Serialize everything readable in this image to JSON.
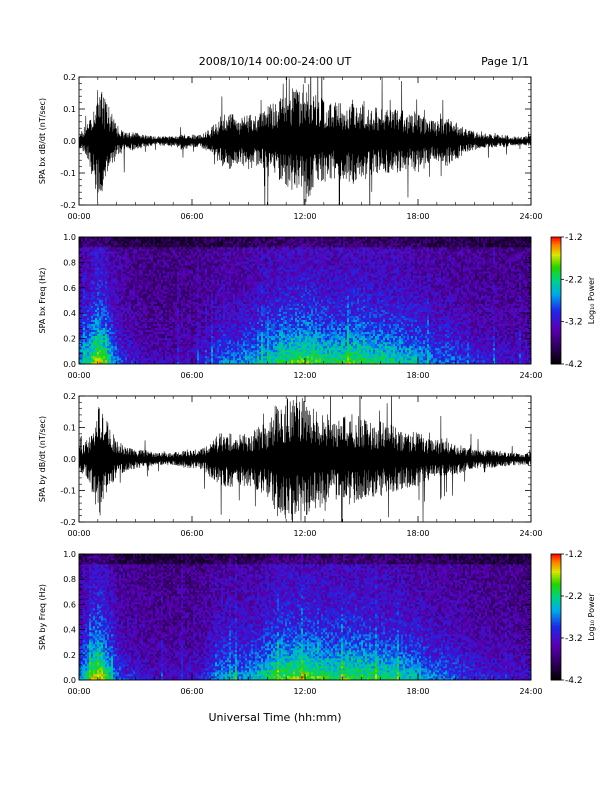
{
  "header": {
    "title": "2008/10/14  00:00-24:00 UT",
    "page": "Page 1/1"
  },
  "xaxis_label": "Universal Time (hh:mm)",
  "chart_data": [
    {
      "type": "line",
      "ylabel": "SPA bx dB/dt (nT/sec)",
      "ylim": [
        -0.2,
        0.2
      ],
      "yticks": [
        "0.2",
        "0.1",
        "0.0",
        "-0.1",
        "-0.2"
      ],
      "xlim": [
        "00:00",
        "24:00"
      ],
      "xticks": [
        "00:00",
        "06:00",
        "12:00",
        "18:00",
        "24:00"
      ],
      "envelope": {
        "hours": [
          0,
          0.5,
          1,
          1.5,
          2,
          2.5,
          3,
          3.5,
          4,
          4.5,
          5,
          5.5,
          6,
          6.5,
          7,
          7.5,
          8,
          8.5,
          9,
          9.5,
          10,
          10.5,
          11,
          11.5,
          12,
          12.5,
          13,
          13.5,
          14,
          14.5,
          15,
          15.5,
          16,
          16.5,
          17,
          17.5,
          18,
          18.5,
          19,
          19.5,
          20,
          20.5,
          21,
          21.5,
          22,
          22.5,
          23,
          23.5,
          24
        ],
        "amplitude": [
          0.02,
          0.06,
          0.2,
          0.12,
          0.05,
          0.03,
          0.03,
          0.02,
          0.015,
          0.015,
          0.015,
          0.03,
          0.02,
          0.02,
          0.04,
          0.08,
          0.09,
          0.07,
          0.09,
          0.08,
          0.11,
          0.13,
          0.14,
          0.16,
          0.2,
          0.16,
          0.13,
          0.12,
          0.13,
          0.14,
          0.13,
          0.11,
          0.1,
          0.1,
          0.1,
          0.09,
          0.1,
          0.07,
          0.06,
          0.08,
          0.06,
          0.04,
          0.03,
          0.025,
          0.02,
          0.02,
          0.015,
          0.015,
          0.02
        ]
      }
    },
    {
      "type": "heatmap",
      "ylabel": "SPA bx Freq (Hz)",
      "ylim": [
        0.0,
        1.0
      ],
      "yticks": [
        "1.0",
        "0.8",
        "0.6",
        "0.4",
        "0.2",
        "0.0"
      ],
      "xlim": [
        "00:00",
        "24:00"
      ],
      "xticks": [
        "00:00",
        "06:00",
        "12:00",
        "18:00",
        "24:00"
      ],
      "colorbar": {
        "label": "Log₁₀ Power",
        "range": [
          -4.2,
          -1.2
        ],
        "ticks": [
          "-1.2",
          "-2.2",
          "-3.2",
          "-4.2"
        ]
      },
      "activity": [
        0.5,
        0.7,
        1.0,
        0.75,
        0.45,
        0.3,
        0.25,
        0.2,
        0.18,
        0.15,
        0.15,
        0.2,
        0.2,
        0.22,
        0.3,
        0.45,
        0.5,
        0.45,
        0.55,
        0.55,
        0.65,
        0.7,
        0.75,
        0.8,
        0.85,
        0.8,
        0.75,
        0.72,
        0.75,
        0.78,
        0.8,
        0.72,
        0.7,
        0.7,
        0.65,
        0.6,
        0.6,
        0.5,
        0.45,
        0.45,
        0.4,
        0.35,
        0.3,
        0.28,
        0.25,
        0.25,
        0.22,
        0.2,
        0.2
      ]
    },
    {
      "type": "line",
      "ylabel": "SPA by dB/dt (nT/sec)",
      "ylim": [
        -0.2,
        0.2
      ],
      "yticks": [
        "0.2",
        "0.1",
        "0.0",
        "-0.1",
        "-0.2"
      ],
      "xlim": [
        "00:00",
        "24:00"
      ],
      "xticks": [
        "00:00",
        "06:00",
        "12:00",
        "18:00",
        "24:00"
      ],
      "envelope": {
        "hours": [
          0,
          0.5,
          1,
          1.5,
          2,
          2.5,
          3,
          3.5,
          4,
          4.5,
          5,
          5.5,
          6,
          6.5,
          7,
          7.5,
          8,
          8.5,
          9,
          9.5,
          10,
          10.5,
          11,
          11.5,
          12,
          12.5,
          13,
          13.5,
          14,
          14.5,
          15,
          15.5,
          16,
          16.5,
          17,
          17.5,
          18,
          18.5,
          19,
          19.5,
          20,
          20.5,
          21,
          21.5,
          22,
          22.5,
          23,
          23.5,
          24
        ],
        "amplitude": [
          0.04,
          0.07,
          0.2,
          0.12,
          0.06,
          0.04,
          0.03,
          0.03,
          0.02,
          0.02,
          0.02,
          0.03,
          0.03,
          0.03,
          0.06,
          0.09,
          0.09,
          0.08,
          0.09,
          0.1,
          0.12,
          0.18,
          0.2,
          0.2,
          0.2,
          0.16,
          0.15,
          0.13,
          0.14,
          0.15,
          0.13,
          0.12,
          0.12,
          0.11,
          0.1,
          0.09,
          0.09,
          0.07,
          0.06,
          0.07,
          0.05,
          0.04,
          0.03,
          0.03,
          0.03,
          0.025,
          0.02,
          0.02,
          0.02
        ]
      }
    },
    {
      "type": "heatmap",
      "ylabel": "SPA by Freq (Hz)",
      "ylim": [
        0.0,
        1.0
      ],
      "yticks": [
        "1.0",
        "0.8",
        "0.6",
        "0.4",
        "0.2",
        "0.0"
      ],
      "xlim": [
        "00:00",
        "24:00"
      ],
      "xticks": [
        "00:00",
        "06:00",
        "12:00",
        "18:00",
        "24:00"
      ],
      "colorbar": {
        "label": "Log₁₀ Power",
        "range": [
          -4.2,
          -1.2
        ],
        "ticks": [
          "-1.2",
          "-2.2",
          "-3.2",
          "-4.2"
        ]
      },
      "activity": [
        0.5,
        0.7,
        1.0,
        0.75,
        0.45,
        0.3,
        0.28,
        0.22,
        0.2,
        0.18,
        0.18,
        0.22,
        0.22,
        0.25,
        0.35,
        0.5,
        0.55,
        0.5,
        0.55,
        0.6,
        0.7,
        0.8,
        0.85,
        0.85,
        0.88,
        0.82,
        0.78,
        0.75,
        0.78,
        0.8,
        0.8,
        0.75,
        0.72,
        0.7,
        0.68,
        0.6,
        0.6,
        0.5,
        0.45,
        0.45,
        0.4,
        0.35,
        0.3,
        0.28,
        0.25,
        0.25,
        0.22,
        0.2,
        0.2
      ]
    }
  ]
}
